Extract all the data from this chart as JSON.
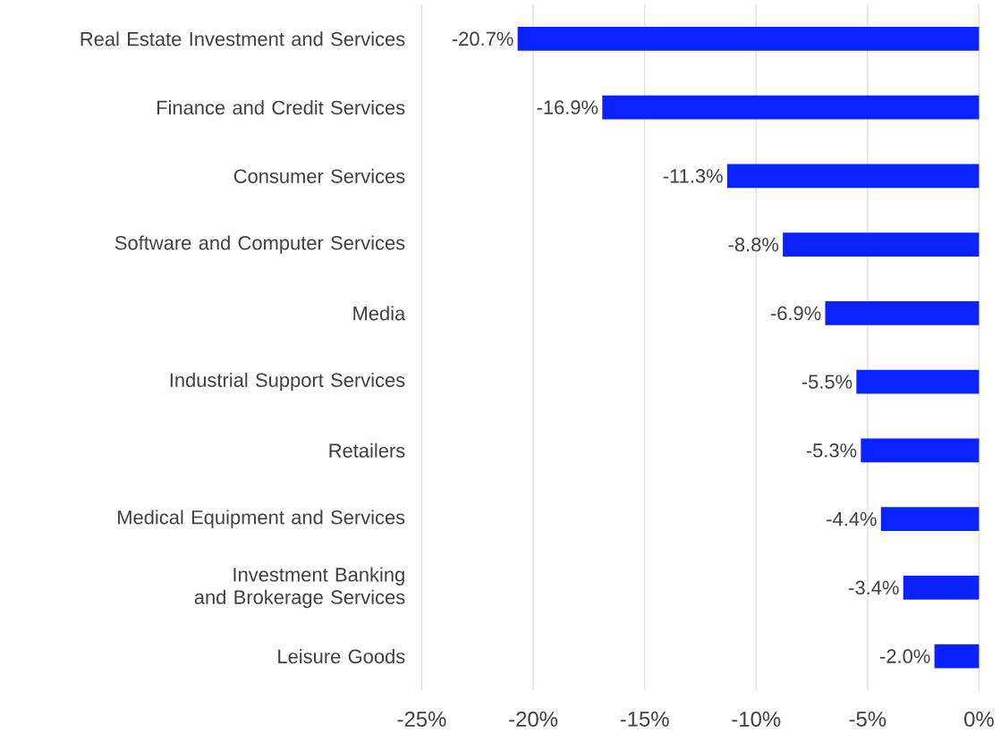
{
  "chart_data": {
    "type": "bar",
    "orientation": "horizontal",
    "categories": [
      "Real Estate Investment and Services",
      "Finance and Credit Services",
      "Consumer Services",
      "Software and Computer Services",
      "Media",
      "Industrial Support Services",
      "Retailers",
      "Medical Equipment and Services",
      "Investment Banking and Brokerage Services",
      "Leisure Goods"
    ],
    "values": [
      -20.7,
      -16.9,
      -11.3,
      -8.8,
      -6.9,
      -5.5,
      -5.3,
      -4.4,
      -3.4,
      -2.0
    ],
    "value_labels": [
      "-20.7%",
      "-16.9%",
      "-11.3%",
      "-8.8%",
      "-6.9%",
      "-5.5%",
      "-5.3%",
      "-4.4%",
      "-3.4%",
      "-2.0%"
    ],
    "color": "#0a22ff",
    "xlim": [
      -25,
      0
    ],
    "xticks": [
      {
        "value": -25,
        "label": "-25%"
      },
      {
        "value": -20,
        "label": "-20%"
      },
      {
        "value": -15,
        "label": "-15%"
      },
      {
        "value": -10,
        "label": "-10%"
      },
      {
        "value": -5,
        "label": "-5%"
      },
      {
        "value": 0,
        "label": "0%"
      }
    ],
    "grid": "x"
  }
}
